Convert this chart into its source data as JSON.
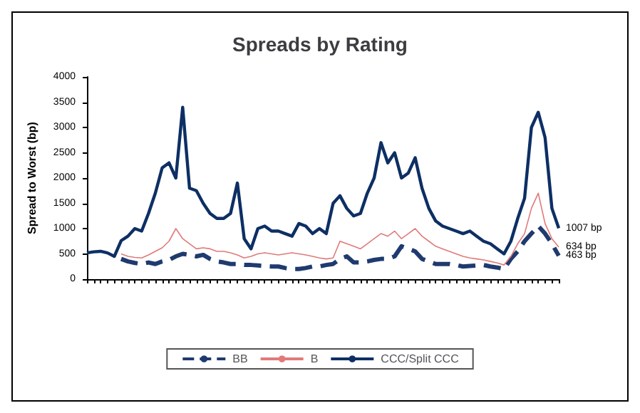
{
  "chart_data": {
    "type": "line",
    "title": "Spreads by Rating",
    "ylabel": "Spread to Worst (bp)",
    "categories": [
      null,
      null,
      null,
      null,
      null,
      null,
      null,
      null,
      null,
      null,
      null,
      null,
      null,
      null,
      null,
      null,
      null,
      null,
      null,
      null,
      null,
      null,
      null,
      null,
      null,
      null,
      null,
      null,
      null,
      null,
      null,
      null,
      null,
      null,
      null,
      null,
      null,
      null,
      null,
      null,
      null,
      null,
      null,
      null,
      null,
      null,
      null,
      null,
      null,
      null,
      null,
      null,
      null,
      null,
      null,
      null,
      null,
      null,
      null,
      null,
      null,
      null,
      null,
      null,
      null,
      null,
      null,
      null,
      null,
      null
    ],
    "ylim": [
      0,
      4000
    ],
    "yticks": [
      0,
      500,
      1000,
      1500,
      2000,
      2500,
      3000,
      3500,
      4000
    ],
    "grid": false,
    "legend": "bottom",
    "marker": "none",
    "series": [
      {
        "name": "BB",
        "color": "#1f3a6e",
        "line_style": "dashed",
        "values": [
          null,
          null,
          null,
          null,
          null,
          400,
          350,
          320,
          300,
          330,
          300,
          350,
          380,
          450,
          500,
          480,
          450,
          480,
          400,
          350,
          330,
          300,
          300,
          280,
          280,
          270,
          260,
          250,
          250,
          220,
          200,
          200,
          220,
          250,
          250,
          280,
          300,
          400,
          450,
          330,
          330,
          350,
          380,
          400,
          400,
          450,
          650,
          600,
          550,
          400,
          350,
          300,
          300,
          300,
          280,
          250,
          260,
          270,
          280,
          250,
          230,
          200,
          400,
          550,
          750,
          900,
          1050,
          900,
          700,
          463
        ],
        "value_labels": [
          null,
          null,
          null,
          null,
          null,
          null,
          null,
          null,
          null,
          null,
          null,
          null,
          null,
          null,
          null,
          null,
          null,
          null,
          null,
          null,
          null,
          null,
          null,
          null,
          null,
          null,
          null,
          null,
          null,
          null,
          null,
          null,
          null,
          null,
          null,
          null,
          null,
          null,
          null,
          null,
          null,
          null,
          null,
          null,
          null,
          null,
          null,
          null,
          null,
          null,
          null,
          null,
          null,
          null,
          null,
          null,
          null,
          null,
          null,
          null,
          null,
          null,
          null,
          null,
          null,
          null,
          null,
          null,
          null,
          "463 bp"
        ]
      },
      {
        "name": "B",
        "color": "#e07a7a",
        "line_style": "solid",
        "values": [
          null,
          null,
          null,
          null,
          null,
          500,
          450,
          430,
          420,
          480,
          550,
          620,
          750,
          1000,
          800,
          700,
          600,
          620,
          600,
          550,
          550,
          520,
          480,
          420,
          450,
          500,
          520,
          500,
          480,
          500,
          520,
          500,
          480,
          450,
          420,
          400,
          420,
          750,
          700,
          650,
          600,
          700,
          800,
          900,
          850,
          950,
          800,
          900,
          1000,
          850,
          750,
          650,
          600,
          550,
          500,
          450,
          420,
          400,
          380,
          350,
          320,
          280,
          450,
          700,
          900,
          1400,
          1700,
          1100,
          800,
          634
        ],
        "value_labels": [
          null,
          null,
          null,
          null,
          null,
          null,
          null,
          null,
          null,
          null,
          null,
          null,
          null,
          null,
          null,
          null,
          null,
          null,
          null,
          null,
          null,
          null,
          null,
          null,
          null,
          null,
          null,
          null,
          null,
          null,
          null,
          null,
          null,
          null,
          null,
          null,
          null,
          null,
          null,
          null,
          null,
          null,
          null,
          null,
          null,
          null,
          null,
          null,
          null,
          null,
          null,
          null,
          null,
          null,
          null,
          null,
          null,
          null,
          null,
          null,
          null,
          null,
          null,
          null,
          null,
          null,
          null,
          null,
          null,
          "634 bp"
        ]
      },
      {
        "name": "CCC/Split CCC",
        "color": "#0d2f64",
        "line_style": "solid",
        "values": [
          520,
          540,
          550,
          520,
          450,
          760,
          850,
          1000,
          950,
          1300,
          1700,
          2200,
          2300,
          2000,
          3400,
          1800,
          1750,
          1500,
          1300,
          1200,
          1200,
          1300,
          1900,
          800,
          600,
          1000,
          1050,
          950,
          950,
          900,
          850,
          1100,
          1050,
          900,
          1000,
          900,
          1500,
          1650,
          1400,
          1250,
          1300,
          1700,
          2000,
          2700,
          2300,
          2500,
          2000,
          2100,
          2400,
          1800,
          1400,
          1150,
          1050,
          1000,
          950,
          900,
          950,
          850,
          750,
          700,
          600,
          500,
          750,
          1200,
          1600,
          3000,
          3300,
          2800,
          1400,
          1007
        ],
        "value_labels": [
          null,
          null,
          null,
          null,
          null,
          null,
          null,
          null,
          null,
          null,
          null,
          null,
          null,
          null,
          null,
          null,
          null,
          null,
          null,
          null,
          null,
          null,
          null,
          null,
          null,
          null,
          null,
          null,
          null,
          null,
          null,
          null,
          null,
          null,
          null,
          null,
          null,
          null,
          null,
          null,
          null,
          null,
          null,
          null,
          null,
          null,
          null,
          null,
          null,
          null,
          null,
          null,
          null,
          null,
          null,
          null,
          null,
          null,
          null,
          null,
          null,
          null,
          null,
          null,
          null,
          null,
          null,
          null,
          null,
          "1007 bp"
        ]
      }
    ]
  }
}
